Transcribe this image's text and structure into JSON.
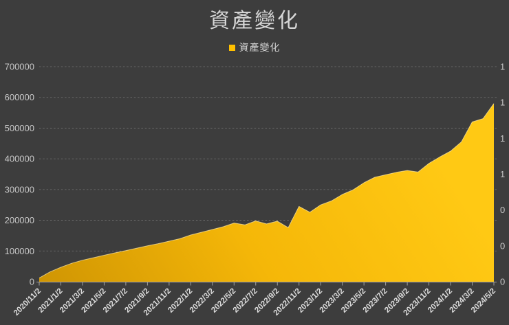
{
  "page": {
    "title": "資產變化",
    "background_color": "#3D3D3D"
  },
  "legend": {
    "label": "資產變化",
    "swatch_color": "#FFC000"
  },
  "colors": {
    "accent_gold": "#FFC000",
    "area_gradient_dark": "#CE9403",
    "area_gradient_mid": "#F5B708",
    "area_gradient_bright": "#FFC914",
    "area_top_highlight": "#FFE9A8",
    "grid_line": "#7C7C7C",
    "axis_line": "#A3A3A3",
    "axis_text": "#C8C8C8",
    "x_label_text": "#DCDCDC",
    "title_text": "#D6D6D6"
  },
  "chart_data": {
    "type": "area",
    "title": "資產變化",
    "series_name": "資產變化",
    "grid": "horizontal-dashed",
    "legend_position": "top-center",
    "x": [
      "2020/11/2",
      "2020/12/2",
      "2021/1/2",
      "2021/2/2",
      "2021/3/2",
      "2021/4/2",
      "2021/5/2",
      "2021/6/2",
      "2021/7/2",
      "2021/8/2",
      "2021/9/2",
      "2021/10/2",
      "2021/11/2",
      "2021/12/2",
      "2022/1/2",
      "2022/2/2",
      "2022/3/2",
      "2022/4/2",
      "2022/5/2",
      "2022/6/2",
      "2022/7/2",
      "2022/8/2",
      "2022/9/2",
      "2022/10/2",
      "2022/11/2",
      "2022/12/2",
      "2023/1/2",
      "2023/2/2",
      "2023/3/2",
      "2023/4/2",
      "2023/5/2",
      "2023/6/2",
      "2023/7/2",
      "2023/8/2",
      "2023/9/2",
      "2023/10/2",
      "2023/11/2",
      "2023/12/2",
      "2024/1/2",
      "2024/2/2",
      "2024/3/2",
      "2024/4/2",
      "2024/5/2"
    ],
    "values": [
      12000,
      32000,
      47000,
      60000,
      70000,
      78000,
      86000,
      94000,
      101000,
      109000,
      117000,
      124000,
      132000,
      140000,
      152000,
      161000,
      170000,
      179000,
      191000,
      185000,
      198000,
      188000,
      197000,
      176000,
      245000,
      226000,
      250000,
      263000,
      284000,
      299000,
      322000,
      340000,
      348000,
      356000,
      362000,
      357000,
      385000,
      406000,
      425000,
      455000,
      520000,
      531000,
      580000
    ],
    "x_tick_labels": [
      "2020/11/2",
      "2021/1/2",
      "2021/3/2",
      "2021/5/2",
      "2021/7/2",
      "2021/9/2",
      "2021/11/2",
      "2022/1/2",
      "2022/3/2",
      "2022/5/2",
      "2022/7/2",
      "2022/9/2",
      "2022/11/2",
      "2023/1/2",
      "2023/3/2",
      "2023/5/2",
      "2023/7/2",
      "2023/9/2",
      "2023/11/2",
      "2024/1/2",
      "2024/3/2",
      "2024/5/2"
    ],
    "y_left_axis": {
      "min": 0,
      "max": 700000,
      "step": 100000,
      "tick_labels": [
        "0",
        "100000",
        "200000",
        "300000",
        "400000",
        "500000",
        "600000",
        "700000"
      ]
    },
    "y_right_axis": {
      "note": "labels truncated by image edge; only first digit visible",
      "visible_tick_digits_top_to_bottom": [
        "1",
        "1",
        "1",
        "1",
        "0",
        "0",
        "0"
      ]
    }
  }
}
